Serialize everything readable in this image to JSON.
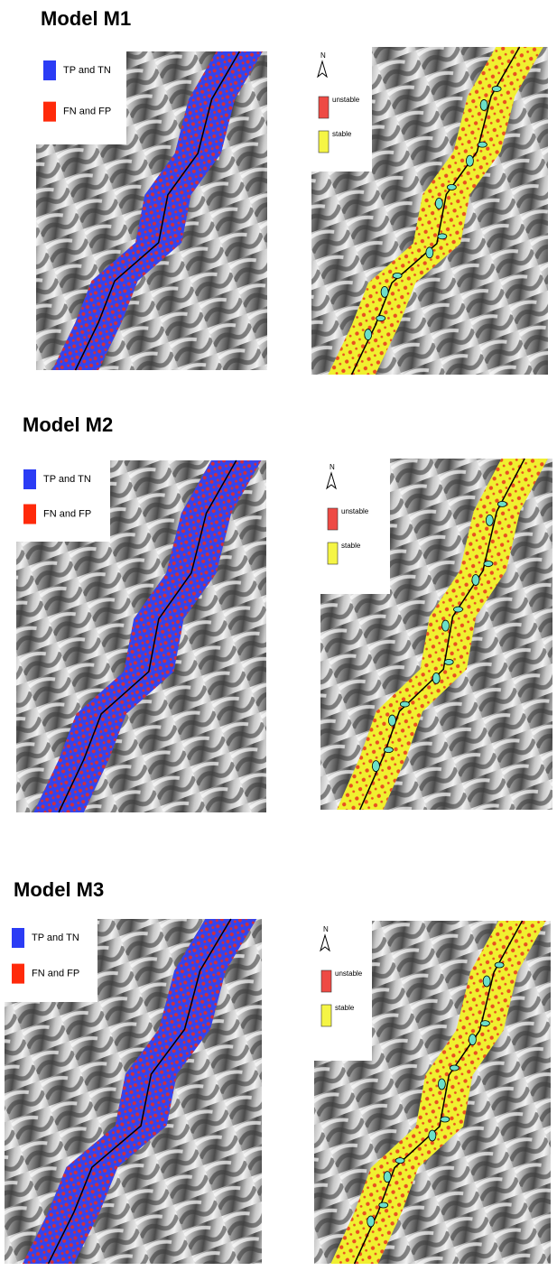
{
  "panels": [
    {
      "title": "Model M1",
      "left_legend": [
        "TP and TN",
        "FN and FP"
      ],
      "right_legend": {
        "north": "N",
        "items": [
          "unstable",
          "stable"
        ]
      }
    },
    {
      "title": "Model M2",
      "left_legend": [
        "TP and TN",
        "FN and FP"
      ],
      "right_legend": {
        "north": "N",
        "items": [
          "unstable",
          "stable"
        ]
      }
    },
    {
      "title": "Model M3",
      "left_legend": [
        "TP and TN",
        "FN and FP"
      ],
      "right_legend": {
        "north": "N",
        "items": [
          "unstable",
          "stable"
        ]
      }
    }
  ]
}
